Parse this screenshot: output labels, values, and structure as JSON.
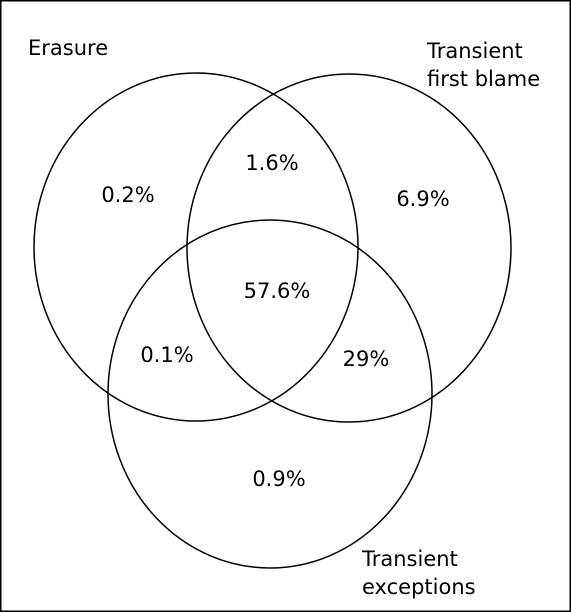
{
  "venn": {
    "sets": {
      "erasure": {
        "label_lines": [
          "Erasure"
        ]
      },
      "transient_first_blame": {
        "label_lines": [
          "Transient",
          "first blame"
        ]
      },
      "transient_exceptions": {
        "label_lines": [
          "Transient",
          "exceptions"
        ]
      }
    },
    "regions": {
      "erasure_only": "0.2%",
      "transient_first_blame_only": "6.9%",
      "transient_exceptions_only": "0.9%",
      "erasure_and_transient_first_blame": "1.6%",
      "erasure_and_transient_exceptions": "0.1%",
      "transient_first_blame_and_transient_exceptions": "29%",
      "all_three": "57.6%"
    },
    "colors": {
      "stroke": "#000000",
      "background": "#ffffff"
    }
  }
}
